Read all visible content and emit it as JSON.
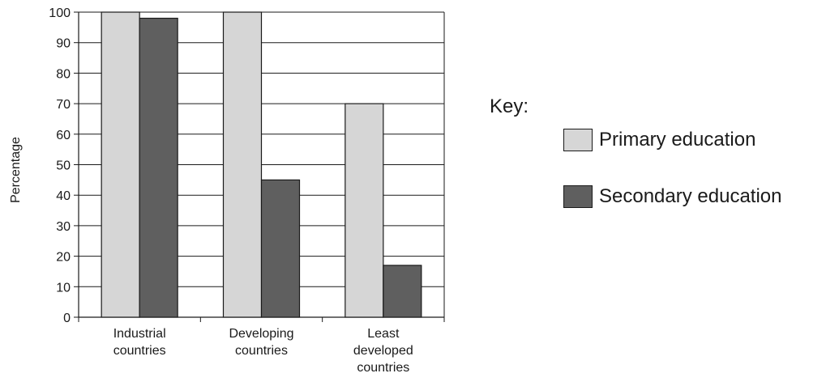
{
  "chart_data": {
    "type": "bar",
    "categories": [
      [
        "Industrial",
        "countries"
      ],
      [
        "Developing",
        "countries"
      ],
      [
        "Least",
        "developed",
        "countries"
      ]
    ],
    "series": [
      {
        "name": "Primary education",
        "values": [
          100,
          100,
          70
        ],
        "color": "#d6d6d6"
      },
      {
        "name": "Secondary education",
        "values": [
          98,
          45,
          17
        ],
        "color": "#5f5f5f"
      }
    ],
    "ylabel": "Percentage",
    "ylim": [
      0,
      100
    ],
    "yticks": [
      0,
      10,
      20,
      30,
      40,
      50,
      60,
      70,
      80,
      90,
      100
    ],
    "grid": true,
    "legend_title": "Key:",
    "legend_placement": "right"
  }
}
